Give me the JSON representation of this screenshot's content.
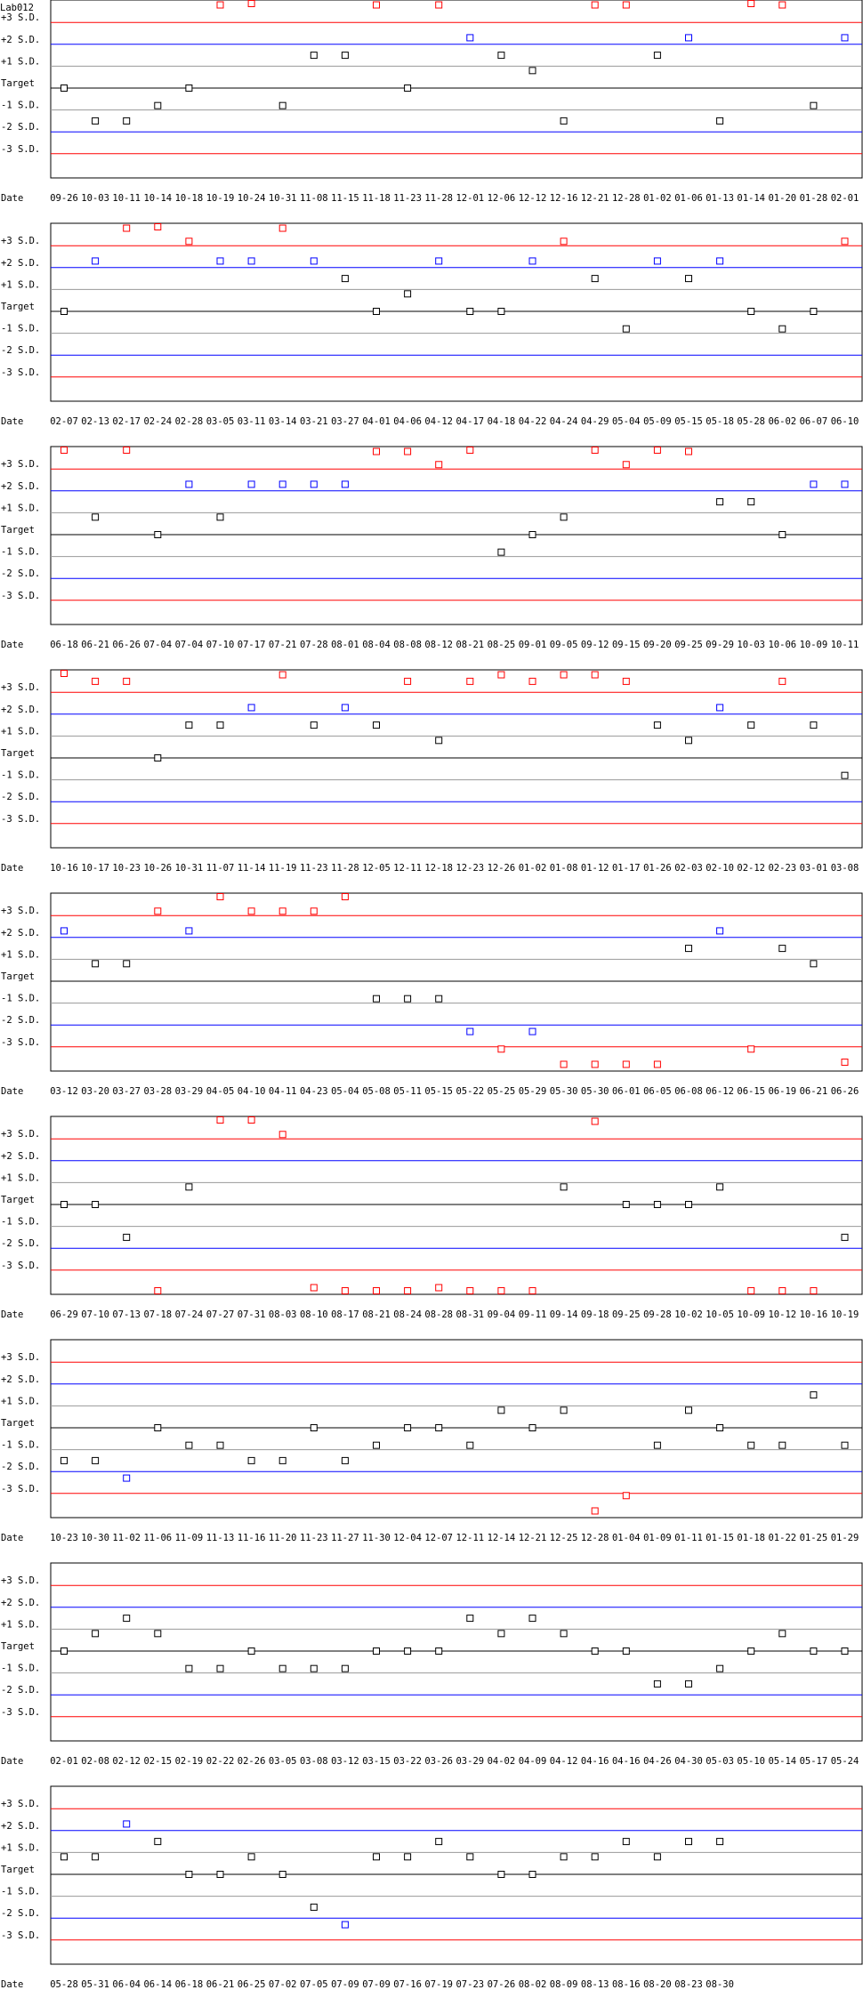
{
  "chart_data": {
    "type": "scatter",
    "title": "Lab012",
    "y_levels": [
      "+3 S.D.",
      "+2 S.D.",
      "+1 S.D.",
      "Target",
      "-1 S.D.",
      "-2 S.D.",
      "-3 S.D."
    ],
    "x_axis_label": "Date",
    "colors": {
      "sd3": "#ff0000",
      "sd2": "#0000ff",
      "sd1": "#999999",
      "target": "#000000",
      "in_range": "#000000",
      "warn": "#0000ff",
      "out": "#ff0000"
    },
    "panels": [
      {
        "dates": [
          "09-26",
          "10-03",
          "10-11",
          "10-14",
          "10-18",
          "10-19",
          "10-24",
          "10-31",
          "11-08",
          "11-15",
          "11-18",
          "11-23",
          "11-28",
          "12-01",
          "12-06",
          "12-12",
          "12-16",
          "12-21",
          "12-28",
          "01-02",
          "01-06",
          "01-13",
          "01-14",
          "01-20",
          "01-28",
          "02-01"
        ],
        "values": [
          0,
          -1.5,
          -1.5,
          -0.8,
          0,
          3.8,
          4.8,
          -0.8,
          1.5,
          1.5,
          3.8,
          0,
          3.8,
          2.3,
          1.5,
          0.8,
          -1.5,
          3.8,
          3.8,
          1.5,
          2.3,
          -1.5,
          4.8,
          3.8,
          -0.8,
          2.3
        ]
      },
      {
        "dates": [
          "02-07",
          "02-13",
          "02-17",
          "02-24",
          "02-28",
          "03-05",
          "03-11",
          "03-14",
          "03-21",
          "03-27",
          "04-01",
          "04-06",
          "04-12",
          "04-17",
          "04-18",
          "04-22",
          "04-24",
          "04-29",
          "05-04",
          "05-09",
          "05-15",
          "05-18",
          "05-28",
          "06-02",
          "06-07",
          "06-10"
        ],
        "values": [
          0,
          2.3,
          3.8,
          4,
          3.2,
          2.3,
          2.3,
          3.8,
          2.3,
          1.5,
          0,
          0.8,
          2.3,
          0,
          0,
          2.3,
          3.2,
          1.5,
          -0.8,
          2.3,
          1.5,
          2.3,
          0,
          -0.8,
          0,
          3.2
        ]
      },
      {
        "dates": [
          "06-18",
          "06-21",
          "06-26",
          "07-04",
          "07-04",
          "07-10",
          "07-17",
          "07-21",
          "07-28",
          "08-01",
          "08-04",
          "08-08",
          "08-12",
          "08-21",
          "08-25",
          "09-01",
          "09-05",
          "09-12",
          "09-15",
          "09-20",
          "09-25",
          "09-29",
          "10-03",
          "10-06",
          "10-09",
          "10-11"
        ],
        "values": [
          4,
          0.8,
          4,
          0,
          2.3,
          0.8,
          2.3,
          2.3,
          2.3,
          2.3,
          3.8,
          3.8,
          3.2,
          4,
          -0.8,
          0,
          0.8,
          4,
          3.2,
          4,
          3.8,
          1.5,
          1.5,
          0,
          2.3,
          2.3
        ]
      },
      {
        "dates": [
          "10-16",
          "10-17",
          "10-23",
          "10-26",
          "10-31",
          "11-07",
          "11-14",
          "11-19",
          "11-23",
          "11-28",
          "12-05",
          "12-11",
          "12-18",
          "12-23",
          "12-26",
          "01-02",
          "01-08",
          "01-12",
          "01-17",
          "01-26",
          "02-03",
          "02-10",
          "02-12",
          "02-23",
          "03-01",
          "03-08"
        ],
        "values": [
          4,
          3.5,
          3.5,
          0,
          1.5,
          1.5,
          2.3,
          3.8,
          1.5,
          2.3,
          1.5,
          3.5,
          0.8,
          3.5,
          3.8,
          3.5,
          3.8,
          3.8,
          3.5,
          1.5,
          0.8,
          2.3,
          1.5,
          3.5,
          1.5,
          -0.8
        ]
      },
      {
        "dates": [
          "03-12",
          "03-20",
          "03-27",
          "03-28",
          "03-29",
          "04-05",
          "04-10",
          "04-11",
          "04-23",
          "05-04",
          "05-08",
          "05-11",
          "05-15",
          "05-22",
          "05-25",
          "05-29",
          "05-30",
          "05-30",
          "06-01",
          "06-05",
          "06-08",
          "06-12",
          "06-15",
          "06-19",
          "06-21",
          "06-26"
        ],
        "values": [
          2.3,
          0.8,
          0.8,
          3.2,
          2.3,
          4,
          3.2,
          3.2,
          3.2,
          4,
          -0.8,
          -0.8,
          -0.8,
          -2.3,
          -3.1,
          -2.3,
          -3.8,
          -3.8,
          -3.8,
          -3.8,
          1.5,
          2.3,
          -3.1,
          1.5,
          0.8,
          -3.7
        ]
      },
      {
        "dates": [
          "06-29",
          "07-10",
          "07-13",
          "07-18",
          "07-24",
          "07-27",
          "07-31",
          "08-03",
          "08-10",
          "08-17",
          "08-21",
          "08-24",
          "08-28",
          "08-31",
          "09-04",
          "09-11",
          "09-14",
          "09-18",
          "09-25",
          "09-28",
          "10-02",
          "10-05",
          "10-09",
          "10-12",
          "10-16",
          "10-19"
        ],
        "values": [
          0,
          0,
          -1.5,
          -4,
          0.8,
          4,
          4,
          3.2,
          -3.8,
          -4,
          -4,
          -4,
          -3.8,
          -4,
          -4,
          -4,
          0.8,
          3.8,
          0,
          0,
          0,
          0.8,
          -4,
          -4,
          -4,
          -1.5
        ]
      },
      {
        "dates": [
          "10-23",
          "10-30",
          "11-02",
          "11-06",
          "11-09",
          "11-13",
          "11-16",
          "11-20",
          "11-23",
          "11-27",
          "11-30",
          "12-04",
          "12-07",
          "12-11",
          "12-14",
          "12-21",
          "12-25",
          "12-28",
          "01-04",
          "01-09",
          "01-11",
          "01-15",
          "01-18",
          "01-22",
          "01-25",
          "01-29"
        ],
        "values": [
          -1.5,
          -1.5,
          -2.3,
          0,
          -0.8,
          -0.8,
          -1.5,
          -1.5,
          0,
          -1.5,
          -0.8,
          0,
          0,
          -0.8,
          0.8,
          0,
          0.8,
          -3.8,
          -3.1,
          -0.8,
          0.8,
          0,
          -0.8,
          -0.8,
          1.5,
          -0.8
        ]
      },
      {
        "dates": [
          "02-01",
          "02-08",
          "02-12",
          "02-15",
          "02-19",
          "02-22",
          "02-26",
          "03-05",
          "03-08",
          "03-12",
          "03-15",
          "03-22",
          "03-26",
          "03-29",
          "04-02",
          "04-09",
          "04-12",
          "04-16",
          "04-16",
          "04-26",
          "04-30",
          "05-03",
          "05-10",
          "05-14",
          "05-17",
          "05-24"
        ],
        "values": [
          0,
          0.8,
          1.5,
          0.8,
          -0.8,
          -0.8,
          0,
          -0.8,
          -0.8,
          -0.8,
          0,
          0,
          0,
          1.5,
          0.8,
          1.5,
          0.8,
          0,
          0,
          -1.5,
          -1.5,
          -0.8,
          0,
          0.8,
          0,
          0
        ]
      },
      {
        "dates": [
          "05-28",
          "05-31",
          "06-04",
          "06-14",
          "06-18",
          "06-21",
          "06-25",
          "07-02",
          "07-05",
          "07-09",
          "07-09",
          "07-16",
          "07-19",
          "07-23",
          "07-26",
          "08-02",
          "08-09",
          "08-13",
          "08-16",
          "08-20",
          "08-23",
          "08-30"
        ],
        "values": [
          0.8,
          0.8,
          2.3,
          1.5,
          0,
          0,
          0.8,
          0,
          -1.5,
          -2.3,
          0.8,
          0.8,
          1.5,
          0.8,
          0,
          0,
          0.8,
          0.8,
          1.5,
          0.8,
          1.5,
          1.5
        ]
      }
    ]
  }
}
